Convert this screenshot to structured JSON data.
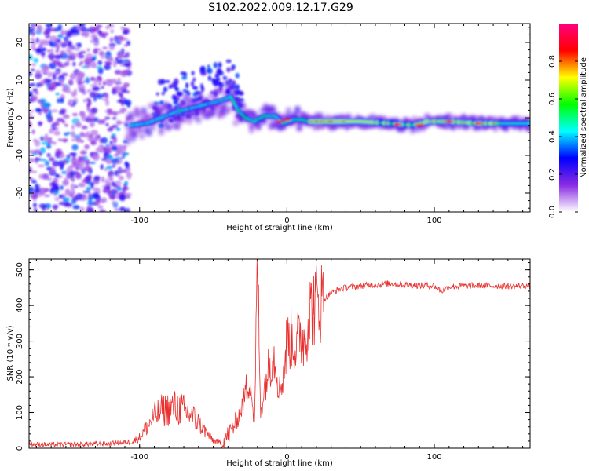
{
  "title": "S102.2022.009.12.17.G29",
  "chart_data": [
    {
      "type": "heatmap",
      "xlabel": "Height of straight line (km)",
      "ylabel": "Frequency (Hz)",
      "xlim": [
        -175,
        165
      ],
      "ylim": [
        -25,
        25
      ],
      "x_ticks": [
        -100,
        0,
        100
      ],
      "y_ticks": [
        -20,
        -10,
        0,
        10,
        20
      ],
      "colorbar": {
        "label": "Normalized spectral amplitude",
        "range": [
          0,
          1
        ],
        "ticks": [
          "0.0",
          "0.2",
          "0.4",
          "0.6",
          "0.8"
        ],
        "colormap": [
          "#ffffff",
          "#8a2be2",
          "#0000ff",
          "#00ffff",
          "#00ff00",
          "#ffff00",
          "#ff0000",
          "#ff0080"
        ]
      },
      "ridge": {
        "x": [
          -105,
          -95,
          -85,
          -75,
          -65,
          -55,
          -45,
          -38,
          -33,
          -28,
          -22,
          -15,
          -8,
          -2,
          5,
          10,
          15,
          30,
          50,
          70,
          85,
          95,
          110,
          130,
          150,
          165
        ],
        "y": [
          -2,
          -1.5,
          0,
          1.5,
          2.5,
          3.5,
          4.5,
          5.5,
          2,
          0,
          -1,
          0.5,
          0.5,
          -1.5,
          -0.5,
          -0.5,
          -1,
          -1,
          -1,
          -1.5,
          -2,
          -1,
          -1,
          -1.5,
          -1.5,
          -1.5
        ]
      }
    },
    {
      "type": "line",
      "xlabel": "Height of straight line (km)",
      "ylabel": "SNR (10 * v/v)",
      "xlim": [
        -175,
        165
      ],
      "ylim": [
        0,
        530
      ],
      "x_ticks": [
        -100,
        0,
        100
      ],
      "y_ticks": [
        0,
        100,
        200,
        300,
        400,
        500
      ],
      "series": [
        {
          "color": "#e8302e",
          "x": [
            -175,
            -160,
            -140,
            -120,
            -105,
            -100,
            -95,
            -90,
            -85,
            -80,
            -75,
            -70,
            -65,
            -60,
            -55,
            -50,
            -45,
            -40,
            -35,
            -30,
            -28,
            -25,
            -22,
            -20,
            -18,
            -15,
            -12,
            -10,
            -8,
            -5,
            -2,
            0,
            3,
            6,
            9,
            12,
            15,
            18,
            22,
            26,
            30,
            35,
            40,
            50,
            60,
            70,
            80,
            90,
            100,
            105,
            110,
            120,
            130,
            140,
            150,
            165
          ],
          "y": [
            12,
            10,
            11,
            13,
            18,
            30,
            60,
            90,
            105,
            110,
            115,
            105,
            95,
            70,
            45,
            22,
            15,
            35,
            70,
            120,
            160,
            200,
            60,
            530,
            100,
            180,
            230,
            260,
            250,
            160,
            220,
            300,
            310,
            280,
            320,
            300,
            380,
            400,
            410,
            420,
            435,
            445,
            450,
            455,
            458,
            462,
            458,
            456,
            455,
            440,
            452,
            455,
            456,
            455,
            454,
            455
          ]
        }
      ]
    }
  ]
}
